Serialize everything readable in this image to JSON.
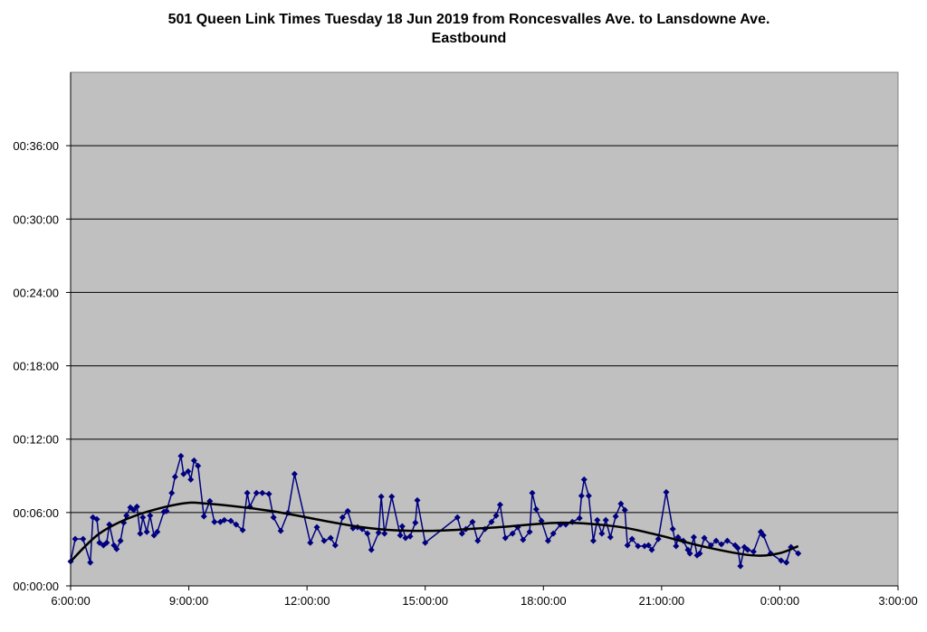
{
  "chart_data": {
    "type": "line",
    "title": "501 Queen Link Times Tuesday 18 Jun 2019 from Roncesvalles Ave. to Lansdowne Ave.",
    "subtitle": "Eastbound",
    "xlabel": "",
    "ylabel": "",
    "xlim": [
      "06:00",
      "03:00"
    ],
    "ylim": [
      "00:00:00",
      "00:42:00"
    ],
    "x_ticks": [
      "6:00:00",
      "9:00:00",
      "12:00:00",
      "15:00:00",
      "18:00:00",
      "21:00:00",
      "0:00:00",
      "3:00:00"
    ],
    "y_ticks": [
      "00:00:00",
      "00:06:00",
      "00:12:00",
      "00:18:00",
      "00:24:00",
      "00:30:00",
      "00:36:00"
    ],
    "grid": "horizontal",
    "legend": "none",
    "colors": {
      "plot_background": "#C0C0C0",
      "series": "#000080",
      "trend": "#000000"
    },
    "series": [
      {
        "marker": "diamond",
        "points": [
          [
            "06:00",
            "02:00"
          ],
          [
            "06:07",
            "03:50"
          ],
          [
            "06:19",
            "03:50"
          ],
          [
            "06:30",
            "01:55"
          ],
          [
            "06:34",
            "05:36"
          ],
          [
            "06:40",
            "05:27"
          ],
          [
            "06:44",
            "03:32"
          ],
          [
            "06:50",
            "03:19"
          ],
          [
            "06:55",
            "03:32"
          ],
          [
            "06:59",
            "05:01"
          ],
          [
            "07:06",
            "03:19"
          ],
          [
            "07:10",
            "03:01"
          ],
          [
            "07:16",
            "03:41"
          ],
          [
            "07:21",
            "05:10"
          ],
          [
            "07:25",
            "05:45"
          ],
          [
            "07:31",
            "06:25"
          ],
          [
            "07:36",
            "06:12"
          ],
          [
            "07:41",
            "06:29"
          ],
          [
            "07:46",
            "04:17"
          ],
          [
            "07:50",
            "05:36"
          ],
          [
            "07:56",
            "04:25"
          ],
          [
            "08:01",
            "05:45"
          ],
          [
            "08:07",
            "04:08"
          ],
          [
            "08:12",
            "04:25"
          ],
          [
            "08:22",
            "06:03"
          ],
          [
            "08:26",
            "06:07"
          ],
          [
            "08:34",
            "07:36"
          ],
          [
            "08:39",
            "08:55"
          ],
          [
            "08:48",
            "10:37"
          ],
          [
            "08:52",
            "09:09"
          ],
          [
            "08:59",
            "09:22"
          ],
          [
            "09:03",
            "08:42"
          ],
          [
            "09:08",
            "10:15"
          ],
          [
            "09:14",
            "09:49"
          ],
          [
            "09:23",
            "05:41"
          ],
          [
            "09:32",
            "06:56"
          ],
          [
            "09:39",
            "05:14"
          ],
          [
            "09:48",
            "05:14"
          ],
          [
            "09:54",
            "05:23"
          ],
          [
            "10:04",
            "05:19"
          ],
          [
            "10:12",
            "05:01"
          ],
          [
            "10:22",
            "04:34"
          ],
          [
            "10:29",
            "07:36"
          ],
          [
            "10:33",
            "06:29"
          ],
          [
            "10:43",
            "07:36"
          ],
          [
            "10:52",
            "07:36"
          ],
          [
            "11:02",
            "07:31"
          ],
          [
            "11:09",
            "05:36"
          ],
          [
            "11:20",
            "04:30"
          ],
          [
            "11:31",
            "05:58"
          ],
          [
            "11:41",
            "09:09"
          ],
          [
            "12:05",
            "03:32"
          ],
          [
            "12:15",
            "04:48"
          ],
          [
            "12:26",
            "03:41"
          ],
          [
            "12:36",
            "03:55"
          ],
          [
            "12:43",
            "03:19"
          ],
          [
            "12:54",
            "05:36"
          ],
          [
            "13:02",
            "06:07"
          ],
          [
            "13:10",
            "04:43"
          ],
          [
            "13:17",
            "04:48"
          ],
          [
            "13:24",
            "04:39"
          ],
          [
            "13:32",
            "04:17"
          ],
          [
            "13:38",
            "02:57"
          ],
          [
            "13:49",
            "04:21"
          ],
          [
            "13:53",
            "07:18"
          ],
          [
            "13:58",
            "04:17"
          ],
          [
            "14:09",
            "07:18"
          ],
          [
            "14:22",
            "04:08"
          ],
          [
            "14:25",
            "04:52"
          ],
          [
            "14:30",
            "03:55"
          ],
          [
            "14:37",
            "04:03"
          ],
          [
            "14:45",
            "05:10"
          ],
          [
            "14:48",
            "07:00"
          ],
          [
            "15:00",
            "03:32"
          ],
          [
            "15:49",
            "05:36"
          ],
          [
            "15:56",
            "04:17"
          ],
          [
            "16:02",
            "04:39"
          ],
          [
            "16:12",
            "05:14"
          ],
          [
            "16:20",
            "03:41"
          ],
          [
            "16:31",
            "04:39"
          ],
          [
            "16:41",
            "05:14"
          ],
          [
            "16:48",
            "05:45"
          ],
          [
            "16:54",
            "06:38"
          ],
          [
            "17:02",
            "03:55"
          ],
          [
            "17:13",
            "04:17"
          ],
          [
            "17:21",
            "04:48"
          ],
          [
            "17:29",
            "03:46"
          ],
          [
            "17:39",
            "04:25"
          ],
          [
            "17:43",
            "07:36"
          ],
          [
            "17:49",
            "06:16"
          ],
          [
            "17:57",
            "05:19"
          ],
          [
            "18:07",
            "03:41"
          ],
          [
            "18:15",
            "04:17"
          ],
          [
            "18:26",
            "05:01"
          ],
          [
            "18:34",
            "05:01"
          ],
          [
            "18:44",
            "05:14"
          ],
          [
            "18:55",
            "05:32"
          ],
          [
            "18:58",
            "07:22"
          ],
          [
            "19:02",
            "08:42"
          ],
          [
            "19:09",
            "07:22"
          ],
          [
            "19:16",
            "03:41"
          ],
          [
            "19:22",
            "05:23"
          ],
          [
            "19:29",
            "04:17"
          ],
          [
            "19:35",
            "05:23"
          ],
          [
            "19:42",
            "03:59"
          ],
          [
            "19:50",
            "05:41"
          ],
          [
            "19:58",
            "06:43"
          ],
          [
            "20:04",
            "06:12"
          ],
          [
            "20:08",
            "03:19"
          ],
          [
            "20:15",
            "03:50"
          ],
          [
            "20:24",
            "03:15"
          ],
          [
            "20:34",
            "03:15"
          ],
          [
            "20:40",
            "03:19"
          ],
          [
            "20:45",
            "02:57"
          ],
          [
            "20:55",
            "03:50"
          ],
          [
            "21:07",
            "07:40"
          ],
          [
            "21:17",
            "04:39"
          ],
          [
            "21:22",
            "03:15"
          ],
          [
            "21:25",
            "03:59"
          ],
          [
            "21:33",
            "03:41"
          ],
          [
            "21:40",
            "02:57"
          ],
          [
            "21:43",
            "02:39"
          ],
          [
            "21:49",
            "03:59"
          ],
          [
            "21:54",
            "02:30"
          ],
          [
            "21:58",
            "02:39"
          ],
          [
            "22:05",
            "03:55"
          ],
          [
            "22:15",
            "03:19"
          ],
          [
            "22:23",
            "03:41"
          ],
          [
            "22:31",
            "03:24"
          ],
          [
            "22:40",
            "03:41"
          ],
          [
            "22:52",
            "03:19"
          ],
          [
            "22:56",
            "03:06"
          ],
          [
            "23:00",
            "01:37"
          ],
          [
            "23:06",
            "03:10"
          ],
          [
            "23:11",
            "02:57"
          ],
          [
            "23:20",
            "02:48"
          ],
          [
            "23:31",
            "04:25"
          ],
          [
            "23:35",
            "04:08"
          ],
          [
            "23:46",
            "02:39"
          ],
          [
            "00:02",
            "02:04"
          ],
          [
            "00:10",
            "01:55"
          ],
          [
            "00:17",
            "03:10"
          ],
          [
            "00:28",
            "02:39"
          ]
        ]
      }
    ],
    "trendline": {
      "type": "polynomial",
      "points": [
        [
          "06:00",
          "02:00"
        ],
        [
          "06:44",
          "04:17"
        ],
        [
          "07:39",
          "05:45"
        ],
        [
          "08:48",
          "06:43"
        ],
        [
          "09:30",
          "06:43"
        ],
        [
          "11:06",
          "06:07"
        ],
        [
          "13:24",
          "04:48"
        ],
        [
          "15:00",
          "04:30"
        ],
        [
          "16:51",
          "04:48"
        ],
        [
          "18:27",
          "05:10"
        ],
        [
          "19:50",
          "04:52"
        ],
        [
          "20:45",
          "04:17"
        ],
        [
          "22:08",
          "03:10"
        ],
        [
          "23:17",
          "02:30"
        ],
        [
          "23:58",
          "02:39"
        ],
        [
          "00:28",
          "03:15"
        ]
      ]
    }
  }
}
